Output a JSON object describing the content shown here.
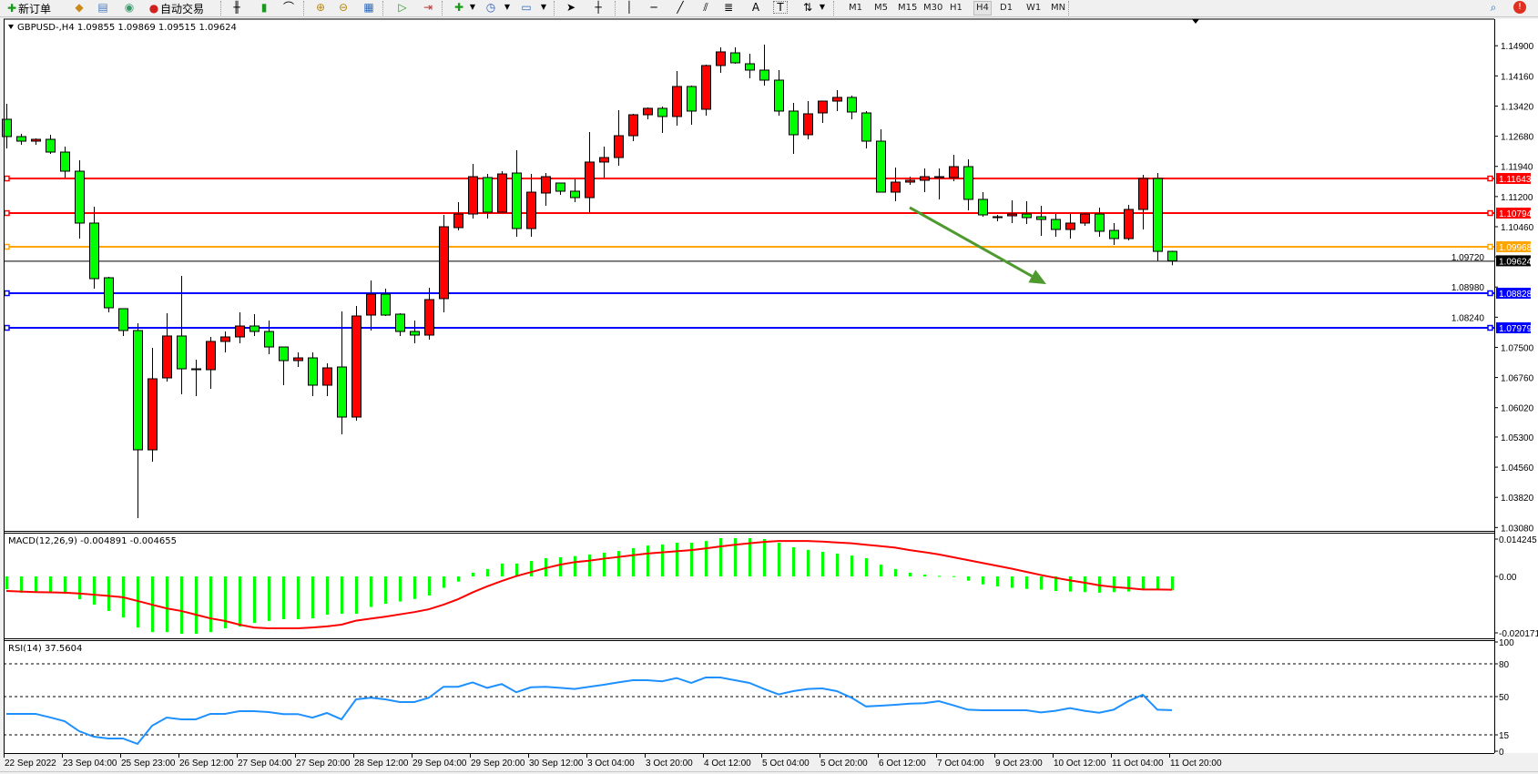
{
  "toolbar": {
    "new_order_label": "新订单",
    "auto_trading_label": "自动交易",
    "icons": [
      "new-order-icon",
      "market-watch-icon",
      "navigator-icon",
      "signals-icon",
      "auto-trading-icon",
      "bar-chart-icon",
      "candlestick-icon",
      "line-chart-icon",
      "zoom-in-icon",
      "zoom-out-icon",
      "tile-windows-icon",
      "autoscroll-icon",
      "chart-shift-icon",
      "indicators-icon",
      "periods-icon",
      "templates-icon",
      "cursor-icon",
      "crosshair-icon",
      "vertical-line-icon",
      "horizontal-line-icon",
      "trendline-icon",
      "channel-icon",
      "fibonacci-icon",
      "text-icon",
      "text-label-icon",
      "arrows-icon",
      "search-icon",
      "alert-icon"
    ],
    "text_tool": "A",
    "label_tool": "T",
    "timeframes": [
      "M1",
      "M5",
      "M15",
      "M30",
      "H1",
      "H4",
      "D1",
      "W1",
      "MN"
    ],
    "active_timeframe": "H4"
  },
  "chart": {
    "header": "GBPUSD-,H4  1.09855 1.09869 1.09515 1.09624",
    "macd_label": "MACD(12,26,9) -0.004891 -0.004655",
    "rsi_label": "RSI(14) 37.5604",
    "colors": {
      "bull": "#ff0000",
      "bear": "#00ff00",
      "macd_hist": "#00ff00",
      "signal": "#ff0000",
      "rsi": "#1e90ff",
      "arrow": "#4e9a2e"
    }
  },
  "chart_data": [
    {
      "type": "candlestick",
      "symbol": "GBPUSD-",
      "timeframe": "H4",
      "ylim": [
        1.0308,
        1.149
      ],
      "y_ticks": [
        "1.14900",
        "1.14160",
        "1.13420",
        "1.12680",
        "1.11940",
        "1.11200",
        "1.10460",
        "1.09720",
        "1.08980",
        "1.08240",
        "1.07500",
        "1.06760",
        "1.06020",
        "1.05300",
        "1.04560",
        "1.03820",
        "1.03080"
      ],
      "x_tick_labels": [
        "22 Sep 2022",
        "23 Sep 04:00",
        "25 Sep 23:00",
        "26 Sep 12:00",
        "27 Sep 04:00",
        "27 Sep 20:00",
        "28 Sep 12:00",
        "29 Sep 04:00",
        "29 Sep 20:00",
        "30 Sep 12:00",
        "3 Oct 04:00",
        "3 Oct 20:00",
        "4 Oct 12:00",
        "5 Oct 04:00",
        "5 Oct 20:00",
        "6 Oct 12:00",
        "7 Oct 04:00",
        "9 Oct 23:00",
        "10 Oct 12:00",
        "11 Oct 04:00",
        "11 Oct 20:00"
      ],
      "x_tick_every": 4,
      "ohlc": [
        [
          1.13096,
          1.13475,
          1.12381,
          1.12671
        ],
        [
          1.12671,
          1.12738,
          1.1247,
          1.12559
        ],
        [
          1.12559,
          1.12626,
          1.1247,
          1.12604
        ],
        [
          1.12604,
          1.12716,
          1.12247,
          1.12291
        ],
        [
          1.12291,
          1.12425,
          1.11666,
          1.11822
        ],
        [
          1.11822,
          1.1209,
          1.10169,
          1.10549
        ],
        [
          1.10549,
          1.10951,
          1.0894,
          1.09186
        ],
        [
          1.09208,
          1.09231,
          1.08359,
          1.08471
        ],
        [
          1.08449,
          1.08449,
          1.07779,
          1.07913
        ],
        [
          1.07913,
          1.08091,
          1.03311,
          1.04986
        ],
        [
          1.04986,
          1.07488,
          1.04696,
          1.06729
        ],
        [
          1.06751,
          1.08337,
          1.06662,
          1.07779
        ],
        [
          1.07779,
          1.09253,
          1.06349,
          1.06974
        ],
        [
          1.06974,
          1.07198,
          1.06304,
          1.06952
        ],
        [
          1.06952,
          1.07756,
          1.06483,
          1.07645
        ],
        [
          1.07645,
          1.0789,
          1.07376,
          1.07756
        ],
        [
          1.07756,
          1.08359,
          1.076,
          1.08024
        ],
        [
          1.08024,
          1.08315,
          1.07779,
          1.0789
        ],
        [
          1.0789,
          1.08158,
          1.07332,
          1.0751
        ],
        [
          1.0751,
          1.0751,
          1.06572,
          1.07175
        ],
        [
          1.07175,
          1.07376,
          1.07019,
          1.07242
        ],
        [
          1.07242,
          1.07376,
          1.06304,
          1.06572
        ],
        [
          1.06572,
          1.07108,
          1.06304,
          1.06997
        ],
        [
          1.07019,
          1.08382,
          1.05366,
          1.0579
        ],
        [
          1.0579,
          1.08516,
          1.05701,
          1.0827
        ],
        [
          1.08292,
          1.09141,
          1.07913,
          1.08806
        ],
        [
          1.08806,
          1.0894,
          1.0827,
          1.08292
        ],
        [
          1.08315,
          1.08337,
          1.07779,
          1.0789
        ],
        [
          1.0789,
          1.08158,
          1.076,
          1.07801
        ],
        [
          1.07801,
          1.08963,
          1.07689,
          1.08672
        ],
        [
          1.08695,
          1.1075,
          1.08359,
          1.10459
        ],
        [
          1.10437,
          1.11063,
          1.1037,
          1.10772
        ],
        [
          1.10772,
          1.12001,
          1.1066,
          1.11688
        ],
        [
          1.11666,
          1.11755,
          1.1066,
          1.10817
        ],
        [
          1.10817,
          1.11822,
          1.10817,
          1.11755
        ],
        [
          1.11777,
          1.12336,
          1.10214,
          1.10415
        ],
        [
          1.10415,
          1.11755,
          1.10214,
          1.11308
        ],
        [
          1.11286,
          1.11777,
          1.10973,
          1.11688
        ],
        [
          1.11532,
          1.11532,
          1.11241,
          1.11331
        ],
        [
          1.11331,
          1.11621,
          1.11063,
          1.11174
        ],
        [
          1.11174,
          1.12783,
          1.10817,
          1.12046
        ],
        [
          1.12046,
          1.12425,
          1.11666,
          1.12157
        ],
        [
          1.12157,
          1.13319,
          1.11956,
          1.12693
        ],
        [
          1.12693,
          1.1323,
          1.12559,
          1.13207
        ],
        [
          1.13207,
          1.13386,
          1.13096,
          1.13364
        ],
        [
          1.13364,
          1.13408,
          1.1276,
          1.13163
        ],
        [
          1.13163,
          1.1428,
          1.12939,
          1.139
        ],
        [
          1.139,
          1.13922,
          1.12961,
          1.13297
        ],
        [
          1.13341,
          1.14436,
          1.13185,
          1.14414
        ],
        [
          1.14414,
          1.1486,
          1.14235,
          1.14749
        ],
        [
          1.14726,
          1.1486,
          1.14458,
          1.14481
        ],
        [
          1.14458,
          1.14704,
          1.14101,
          1.14302
        ],
        [
          1.14302,
          1.14927,
          1.13922,
          1.14056
        ],
        [
          1.14056,
          1.14302,
          1.13185,
          1.13297
        ],
        [
          1.13297,
          1.13498,
          1.12247,
          1.12716
        ],
        [
          1.12716,
          1.13542,
          1.12604,
          1.1323
        ],
        [
          1.13252,
          1.13542,
          1.13006,
          1.13542
        ],
        [
          1.13542,
          1.1381,
          1.13297,
          1.13632
        ],
        [
          1.13632,
          1.13676,
          1.13096,
          1.13274
        ],
        [
          1.13252,
          1.13297,
          1.12381,
          1.12559
        ],
        [
          1.12559,
          1.1285,
          1.11308,
          1.11308
        ],
        [
          1.11308,
          1.11911,
          1.11085,
          1.11554
        ],
        [
          1.11554,
          1.11688,
          1.11487,
          1.11599
        ],
        [
          1.11599,
          1.11889,
          1.11308,
          1.11688
        ],
        [
          1.11666,
          1.11889,
          1.1113,
          1.11688
        ],
        [
          1.11666,
          1.12224,
          1.11576,
          1.11934
        ],
        [
          1.11934,
          1.12113,
          1.10862,
          1.1113
        ],
        [
          1.1113,
          1.11308,
          1.10705,
          1.1075
        ],
        [
          1.10705,
          1.1075,
          1.10593,
          1.10683
        ],
        [
          1.10727,
          1.11107,
          1.10549,
          1.10772
        ],
        [
          1.10772,
          1.11085,
          1.10526,
          1.10683
        ],
        [
          1.10705,
          1.10973,
          1.10236,
          1.10638
        ],
        [
          1.10638,
          1.10772,
          1.10214,
          1.10392
        ],
        [
          1.10392,
          1.10772,
          1.10169,
          1.10549
        ],
        [
          1.10549,
          1.10794,
          1.10482,
          1.10772
        ],
        [
          1.10772,
          1.10929,
          1.10214,
          1.10348
        ],
        [
          1.1037,
          1.10549,
          1.10013,
          1.10169
        ],
        [
          1.10169,
          1.10996,
          1.10124,
          1.10884
        ],
        [
          1.10884,
          1.11733,
          1.10392,
          1.11643
        ],
        [
          1.11643,
          1.11777,
          1.09624,
          1.09855
        ],
        [
          1.09855,
          1.09869,
          1.09515,
          1.09624
        ]
      ],
      "horizontal_lines": [
        {
          "price": "1.11643",
          "color": "#ff0000"
        },
        {
          "price": "1.10794",
          "color": "#ff0000"
        },
        {
          "price": "1.09968",
          "color": "#ffa500"
        },
        {
          "price": "1.08828",
          "color": "#0000ff"
        },
        {
          "price": "1.07979",
          "color": "#0000ff"
        }
      ],
      "current_price": "1.09624",
      "annotation_arrow": {
        "from": {
          "candle": 62,
          "price": 1.1093
        },
        "to": {
          "candle": 71,
          "price": 1.0905
        },
        "direction": "down"
      }
    },
    {
      "type": "macd",
      "params": "12,26,9",
      "ylim": [
        -0.020171,
        0.014245
      ],
      "y_ticks": [
        "0.014245",
        "0.00",
        "-0.020171"
      ],
      "histogram": [
        -0.0045,
        -0.0057,
        -0.0054,
        -0.0054,
        -0.0061,
        -0.008,
        -0.0099,
        -0.0121,
        -0.0144,
        -0.0179,
        -0.0195,
        -0.0195,
        -0.0201,
        -0.0201,
        -0.0195,
        -0.0182,
        -0.0176,
        -0.0163,
        -0.0156,
        -0.015,
        -0.015,
        -0.0147,
        -0.0134,
        -0.0131,
        -0.0131,
        -0.0107,
        -0.0096,
        -0.0088,
        -0.0079,
        -0.0067,
        -0.004,
        -0.0018,
        0.0013,
        0.0026,
        0.0045,
        0.0045,
        0.0054,
        0.0064,
        0.0067,
        0.0071,
        0.0077,
        0.0083,
        0.0089,
        0.0099,
        0.0108,
        0.0112,
        0.0118,
        0.0118,
        0.0124,
        0.0134,
        0.0134,
        0.0134,
        0.0131,
        0.0118,
        0.0102,
        0.0093,
        0.0086,
        0.008,
        0.0073,
        0.0064,
        0.0041,
        0.0026,
        0.0013,
        0.0006,
        0.0002,
        0.0001,
        -0.0015,
        -0.0028,
        -0.0035,
        -0.004,
        -0.0044,
        -0.0046,
        -0.0051,
        -0.0053,
        -0.0055,
        -0.0057,
        -0.0055,
        -0.0053,
        -0.0044,
        -0.0046,
        -0.004891
      ],
      "signal": [
        -0.0051,
        -0.0053,
        -0.0055,
        -0.0056,
        -0.0057,
        -0.006,
        -0.0064,
        -0.0068,
        -0.0073,
        -0.0086,
        -0.0099,
        -0.0112,
        -0.0121,
        -0.0134,
        -0.0147,
        -0.0156,
        -0.0169,
        -0.0179,
        -0.0182,
        -0.0182,
        -0.0182,
        -0.0179,
        -0.0175,
        -0.0169,
        -0.0155,
        -0.0148,
        -0.0141,
        -0.0133,
        -0.0125,
        -0.0115,
        -0.0099,
        -0.008,
        -0.0056,
        -0.0035,
        -0.0016,
        0.0001,
        0.0015,
        0.0029,
        0.0041,
        0.005,
        0.0055,
        0.0062,
        0.0068,
        0.0074,
        0.008,
        0.0084,
        0.0088,
        0.0092,
        0.0098,
        0.0105,
        0.0111,
        0.0116,
        0.0121,
        0.0124,
        0.0124,
        0.0124,
        0.0122,
        0.0119,
        0.0116,
        0.0111,
        0.0106,
        0.0101,
        0.0092,
        0.0085,
        0.0077,
        0.0067,
        0.0057,
        0.0047,
        0.0037,
        0.0027,
        0.0016,
        0.0005,
        -0.0005,
        -0.0014,
        -0.0022,
        -0.0031,
        -0.0037,
        -0.0041,
        -0.0046,
        -0.0046,
        -0.004655
      ]
    },
    {
      "type": "line",
      "indicator": "RSI(14)",
      "ylim": [
        0,
        100
      ],
      "levels": [
        80,
        50,
        15
      ],
      "y_ticks": [
        "100",
        "80",
        "50",
        "15",
        "0"
      ],
      "values": [
        34.2,
        34.2,
        34.2,
        31,
        27.5,
        18.3,
        13.3,
        11.7,
        11.7,
        6.7,
        23.3,
        30.8,
        29.2,
        29.2,
        34.2,
        34.2,
        36.7,
        36.7,
        35.8,
        34,
        34,
        30.8,
        35,
        29.2,
        47.5,
        49,
        47.5,
        45,
        45,
        49,
        59,
        59,
        63,
        58,
        61.5,
        54,
        58.5,
        59,
        58,
        57,
        59,
        60.8,
        63,
        65,
        65,
        64,
        67,
        62.5,
        67.5,
        67.5,
        65,
        62.5,
        57,
        52,
        55,
        57,
        57.5,
        55,
        49,
        41,
        41.7,
        42.5,
        43.5,
        44,
        45.8,
        42,
        38,
        37.5,
        37.5,
        37.5,
        37.5,
        35.5,
        37,
        39.5,
        37,
        35.2,
        38,
        45.8,
        51.7,
        38,
        37.5604
      ]
    }
  ]
}
